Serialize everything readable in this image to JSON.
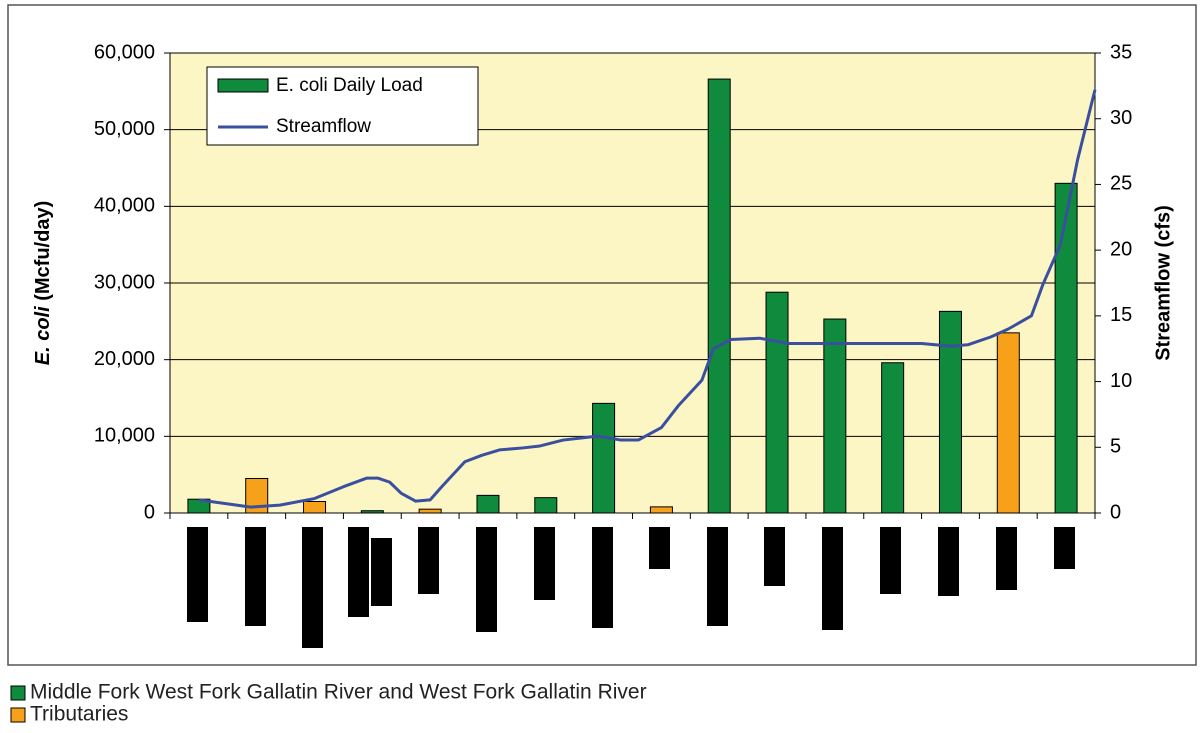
{
  "chart_data": {
    "type": "bar",
    "categories": [
      null,
      null,
      null,
      null,
      null,
      null,
      null,
      null,
      null,
      null,
      null,
      null,
      null,
      null,
      null,
      null
    ],
    "series": [
      {
        "name": "E. coli Daily Load",
        "color": "#108a3c",
        "values": [
          1800,
          4500,
          1500,
          300,
          500,
          2300,
          2000,
          14300,
          800,
          56600,
          28800,
          25300,
          19600,
          26300,
          23500,
          43000
        ],
        "colors": [
          "#108a3c",
          "#f7a11a",
          "#f7a11a",
          "#108a3c",
          "#f7a11a",
          "#108a3c",
          "#108a3c",
          "#108a3c",
          "#f7a11a",
          "#108a3c",
          "#108a3c",
          "#108a3c",
          "#108a3c",
          "#108a3c",
          "#f7a11a",
          "#108a3c"
        ]
      },
      {
        "name": "Streamflow",
        "type": "line",
        "axis": "y2",
        "color": "#3a4fa0",
        "x": [
          0,
          0.9,
          1.4,
          2.0,
          2.5,
          2.9,
          3.1,
          3.3,
          3.5,
          3.75,
          4.0,
          4.2,
          4.6,
          4.9,
          5.2,
          5.6,
          5.9,
          6.3,
          6.9,
          7.3,
          7.6,
          8.0,
          8.3,
          8.7,
          8.9,
          9.2,
          9.7,
          10.2,
          10.9,
          12.5,
          13.0,
          13.3,
          13.7,
          14.0,
          14.4,
          14.6,
          14.9,
          15.2,
          15.5
        ],
        "values": [
          1.0,
          0.45,
          0.6,
          1.1,
          2.0,
          2.65,
          2.65,
          2.35,
          1.5,
          0.9,
          1.0,
          2.0,
          3.9,
          4.4,
          4.8,
          4.95,
          5.1,
          5.55,
          5.85,
          5.55,
          5.55,
          6.5,
          8.2,
          10.1,
          12.5,
          13.2,
          13.3,
          12.9,
          12.9,
          12.9,
          12.7,
          12.8,
          13.4,
          14.0,
          15.0,
          17.4,
          20.4,
          26.9,
          32.2
        ]
      }
    ],
    "groups": [
      {
        "name": "Middle Fork West Fork Gallatin River and West Fork Gallatin River",
        "color": "#108a3c"
      },
      {
        "name": "Tributaries",
        "color": "#f7a11a"
      }
    ],
    "ylabel": {
      "italic": "E. coli",
      "rest": "(Mcfu/day)"
    },
    "y2label": "Streamflow (cfs)",
    "ylim": [
      0,
      60000
    ],
    "yticks": [
      0,
      {
        "value": 10000,
        "label": "10,000"
      },
      {
        "value": 20000,
        "label": "20,000"
      },
      {
        "value": 30000,
        "label": "30,000"
      },
      {
        "value": 40000,
        "label": "40,000"
      },
      {
        "value": 50000,
        "label": "50,000"
      },
      {
        "value": 60000,
        "label": "60,000"
      }
    ],
    "y2lim": [
      0,
      35
    ],
    "y2ticks": [
      0,
      5,
      10,
      15,
      20,
      25,
      30,
      35
    ],
    "grid": true,
    "legend": "upper left"
  }
}
